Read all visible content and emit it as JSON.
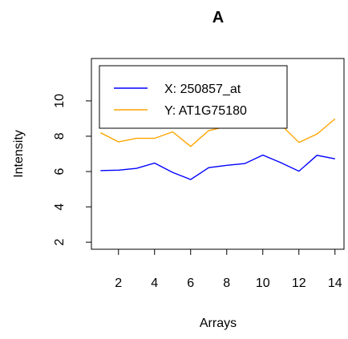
{
  "chart_data": {
    "type": "line",
    "title": "A",
    "xlabel": "Arrays",
    "ylabel": "Intensity",
    "xlim": [
      0.5,
      14.5
    ],
    "ylim": [
      1.6,
      12.4
    ],
    "xticks": [
      2,
      4,
      6,
      8,
      10,
      12,
      14
    ],
    "yticks": [
      2,
      4,
      6,
      8,
      10
    ],
    "grid": false,
    "legend_position": "top-left",
    "x": [
      1,
      2,
      3,
      4,
      5,
      6,
      7,
      8,
      9,
      10,
      11,
      12,
      13,
      14
    ],
    "series": [
      {
        "name": "X: 250857_at",
        "color": "#0000ff",
        "values": [
          6.05,
          6.08,
          6.18,
          6.48,
          5.95,
          5.55,
          6.22,
          6.35,
          6.45,
          6.93,
          6.5,
          6.02,
          6.92,
          6.72
        ]
      },
      {
        "name": "Y: AT1G75180",
        "color": "#ffa500",
        "values": [
          8.2,
          7.68,
          7.88,
          7.88,
          8.25,
          7.42,
          8.32,
          8.55,
          8.95,
          10.1,
          8.65,
          7.65,
          8.12,
          8.98
        ]
      }
    ]
  }
}
